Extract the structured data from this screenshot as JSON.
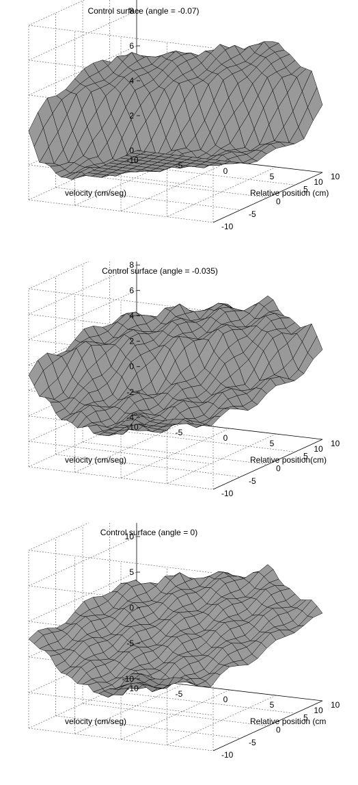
{
  "chart_data": [
    {
      "type": "surface",
      "title": "Control surface (angle = -0.07)",
      "xlabel": "velocity (cm/seg)",
      "ylabel": "Relative position (cm)",
      "x_ticks": [
        "-10",
        "-5",
        "0",
        "5",
        "10"
      ],
      "y_ticks": [
        "-10",
        "-5",
        "0",
        "5",
        "10"
      ],
      "z_ticks": [
        "0",
        "2",
        "4",
        "6",
        "8"
      ],
      "xlim": [
        -10,
        10
      ],
      "ylim": [
        -10,
        10
      ],
      "zlim": [
        0,
        10
      ],
      "grid": true,
      "colors": {
        "face": "#8c8c8c",
        "edge": "#000000"
      },
      "grid_n": 21,
      "z_levels": [
        -0.5,
        1.8,
        5.9,
        8.6
      ],
      "ramp_low": 5.0,
      "ramp_high": 4.0,
      "noise": 0.3
    },
    {
      "type": "surface",
      "title": "Control surface (angle = -0.035)",
      "xlabel": "velocity (cm/seg)",
      "ylabel": "Relative position(cm)",
      "x_ticks": [
        "-10",
        "-5",
        "0",
        "5",
        "10"
      ],
      "y_ticks": [
        "-10",
        "-5",
        "0",
        "5",
        "10"
      ],
      "z_ticks": [
        "-4",
        "-2",
        "0",
        "2",
        "4",
        "6",
        "8"
      ],
      "xlim": [
        -10,
        10
      ],
      "ylim": [
        -10,
        10
      ],
      "zlim": [
        -4,
        10
      ],
      "grid": true,
      "colors": {
        "face": "#8c8c8c",
        "edge": "#000000"
      },
      "grid_n": 21,
      "z_levels": [
        -4.0,
        1.0,
        5.0,
        8.8
      ],
      "ramp_low": 6.0,
      "ramp_high": 5.0,
      "noise": 0.7
    },
    {
      "type": "surface",
      "title": "Control surface  (angle = 0)",
      "xlabel": "velocity (cm/seg)",
      "ylabel": "Relative position (cm",
      "x_ticks": [
        "-10",
        "-5",
        "0",
        "5",
        "10"
      ],
      "y_ticks": [
        "-10",
        "-5",
        "0",
        "5",
        "10"
      ],
      "z_ticks": [
        "-10",
        "-5",
        "0",
        "5",
        "10"
      ],
      "xlim": [
        -10,
        10
      ],
      "ylim": [
        -10,
        10
      ],
      "zlim": [
        -10,
        15
      ],
      "grid": true,
      "colors": {
        "face": "#8c8c8c",
        "edge": "#000000"
      },
      "grid_n": 21,
      "z_levels": [
        -9.5,
        1.0,
        12.0
      ],
      "ramp_low": 6.0,
      "ramp_high": 5.0,
      "noise": 1.0
    }
  ]
}
